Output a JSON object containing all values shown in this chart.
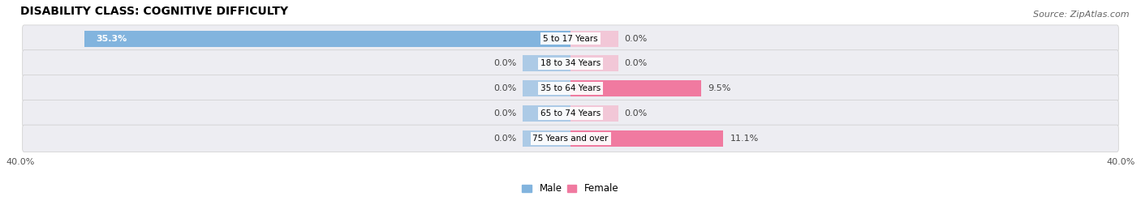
{
  "title": "DISABILITY CLASS: COGNITIVE DIFFICULTY",
  "source": "Source: ZipAtlas.com",
  "categories": [
    "5 to 17 Years",
    "18 to 34 Years",
    "35 to 64 Years",
    "65 to 74 Years",
    "75 Years and over"
  ],
  "male_values": [
    35.3,
    0.0,
    0.0,
    0.0,
    0.0
  ],
  "female_values": [
    0.0,
    0.0,
    9.5,
    0.0,
    11.1
  ],
  "xlim": 40.0,
  "male_color": "#82b4de",
  "female_color": "#f07aa0",
  "female_stub_color": "#f5b8cc",
  "male_label": "Male",
  "female_label": "Female",
  "row_bg_color": "#ededf2",
  "title_fontsize": 10,
  "label_fontsize": 8,
  "tick_fontsize": 8,
  "source_fontsize": 8,
  "stub_size": 3.5,
  "bar_height": 0.65
}
